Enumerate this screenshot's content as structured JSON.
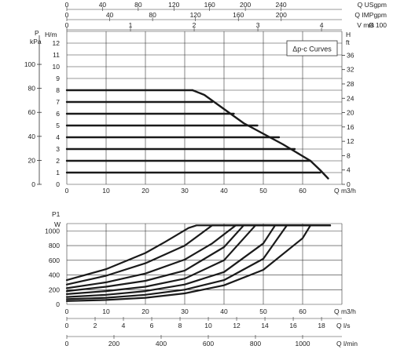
{
  "colors": {
    "curve": "#1a1a1a",
    "grid": "#333333",
    "text": "#222222"
  },
  "chart_data": [
    {
      "id": "head_curves",
      "type": "line",
      "legend_box": {
        "text": "Δp-c Curves",
        "placement": "top-right"
      },
      "grid": true,
      "x_axis": {
        "label": "Q m3/h",
        "range": [
          0,
          70
        ],
        "ticks": [
          0,
          10,
          20,
          30,
          40,
          50,
          60
        ]
      },
      "y_axis_left": {
        "label": "H/m",
        "range": [
          0,
          13
        ],
        "ticks": [
          0,
          1,
          2,
          3,
          4,
          5,
          6,
          7,
          8,
          9,
          10,
          11,
          12
        ]
      },
      "y_axis_pressure": {
        "label": "P",
        "unit": "kPa",
        "range": [
          0,
          127.5
        ],
        "ticks": [
          0,
          20,
          40,
          60,
          80,
          100
        ]
      },
      "y_axis_right": {
        "label": "H",
        "unit": "ft",
        "range": [
          0,
          42.65
        ],
        "ticks": [
          0,
          4,
          8,
          12,
          16,
          20,
          24,
          28,
          32,
          36
        ]
      },
      "top_axes": [
        {
          "label": "Q USgpm",
          "range": [
            0,
            308.2
          ],
          "ticks": [
            0,
            40,
            80,
            120,
            160,
            200,
            240
          ]
        },
        {
          "label": "Q IMPgpm",
          "range": [
            0,
            256.6
          ],
          "ticks": [
            0,
            40,
            80,
            120,
            160,
            200
          ]
        },
        {
          "label": "V m/s",
          "prefix": "Ø 100",
          "range": [
            0,
            4.32
          ],
          "ticks": [
            0,
            1,
            2,
            3,
            4
          ]
        }
      ],
      "envelope": {
        "x": [
          32,
          35,
          40,
          45,
          50,
          55,
          58,
          62,
          64.5,
          66.5
        ],
        "y": [
          8,
          7.6,
          6.4,
          5.2,
          4.3,
          3.4,
          2.8,
          2,
          1.2,
          0.5
        ]
      },
      "series": [
        {
          "values": [
            {
              "x": 0,
              "y": 1
            },
            {
              "x": 64.5,
              "y": 1
            }
          ]
        },
        {
          "values": [
            {
              "x": 0,
              "y": 2
            },
            {
              "x": 62,
              "y": 2
            }
          ]
        },
        {
          "values": [
            {
              "x": 0,
              "y": 3
            },
            {
              "x": 58,
              "y": 3
            }
          ]
        },
        {
          "values": [
            {
              "x": 0,
              "y": 4
            },
            {
              "x": 54,
              "y": 4
            }
          ]
        },
        {
          "values": [
            {
              "x": 0,
              "y": 5
            },
            {
              "x": 48.5,
              "y": 5
            }
          ]
        },
        {
          "values": [
            {
              "x": 0,
              "y": 6
            },
            {
              "x": 42.5,
              "y": 6
            }
          ]
        },
        {
          "values": [
            {
              "x": 0,
              "y": 7
            },
            {
              "x": 37,
              "y": 7
            }
          ]
        },
        {
          "values": [
            {
              "x": 0,
              "y": 8
            },
            {
              "x": 32,
              "y": 8
            }
          ]
        }
      ]
    },
    {
      "id": "power_curves",
      "type": "line",
      "grid": true,
      "title_label": "P1",
      "x_axis": {
        "label": "Q m3/h",
        "range": [
          0,
          70
        ],
        "ticks": [
          0,
          10,
          20,
          30,
          40,
          50,
          60
        ]
      },
      "y_axis_left": {
        "label": "W",
        "range": [
          0,
          1100
        ],
        "ticks": [
          0,
          200,
          400,
          600,
          800,
          1000
        ]
      },
      "bottom_axes": [
        {
          "label": "Q l/s",
          "range": [
            0,
            19.44
          ],
          "ticks": [
            0,
            2,
            4,
            6,
            8,
            10,
            12,
            14,
            16,
            18
          ]
        },
        {
          "label": "Q l/min",
          "range": [
            0,
            1166.7
          ],
          "ticks": [
            0,
            200,
            400,
            600,
            800,
            1000
          ]
        }
      ],
      "series": [
        {
          "values": [
            {
              "x": 0,
              "y": 330
            },
            {
              "x": 10,
              "y": 480
            },
            {
              "x": 20,
              "y": 700
            },
            {
              "x": 25,
              "y": 850
            },
            {
              "x": 31,
              "y": 1040
            },
            {
              "x": 33,
              "y": 1075
            },
            {
              "x": 67,
              "y": 1075
            }
          ]
        },
        {
          "values": [
            {
              "x": 0,
              "y": 270
            },
            {
              "x": 10,
              "y": 390
            },
            {
              "x": 20,
              "y": 560
            },
            {
              "x": 30,
              "y": 800
            },
            {
              "x": 37,
              "y": 1075
            },
            {
              "x": 67,
              "y": 1075
            }
          ]
        },
        {
          "values": [
            {
              "x": 0,
              "y": 220
            },
            {
              "x": 10,
              "y": 300
            },
            {
              "x": 20,
              "y": 420
            },
            {
              "x": 30,
              "y": 610
            },
            {
              "x": 37,
              "y": 830
            },
            {
              "x": 43,
              "y": 1075
            },
            {
              "x": 67,
              "y": 1075
            }
          ]
        },
        {
          "values": [
            {
              "x": 0,
              "y": 180
            },
            {
              "x": 10,
              "y": 240
            },
            {
              "x": 20,
              "y": 320
            },
            {
              "x": 30,
              "y": 460
            },
            {
              "x": 40,
              "y": 780
            },
            {
              "x": 45,
              "y": 1075
            },
            {
              "x": 67,
              "y": 1075
            }
          ]
        },
        {
          "values": [
            {
              "x": 0,
              "y": 140
            },
            {
              "x": 10,
              "y": 180
            },
            {
              "x": 20,
              "y": 240
            },
            {
              "x": 30,
              "y": 350
            },
            {
              "x": 40,
              "y": 600
            },
            {
              "x": 48,
              "y": 1075
            },
            {
              "x": 67,
              "y": 1075
            }
          ]
        },
        {
          "values": [
            {
              "x": 0,
              "y": 100
            },
            {
              "x": 10,
              "y": 130
            },
            {
              "x": 20,
              "y": 180
            },
            {
              "x": 30,
              "y": 270
            },
            {
              "x": 40,
              "y": 440
            },
            {
              "x": 50,
              "y": 830
            },
            {
              "x": 53,
              "y": 1075
            },
            {
              "x": 67,
              "y": 1075
            }
          ]
        },
        {
          "values": [
            {
              "x": 0,
              "y": 70
            },
            {
              "x": 10,
              "y": 90
            },
            {
              "x": 20,
              "y": 130
            },
            {
              "x": 30,
              "y": 200
            },
            {
              "x": 40,
              "y": 330
            },
            {
              "x": 50,
              "y": 620
            },
            {
              "x": 56,
              "y": 1075
            },
            {
              "x": 67,
              "y": 1075
            }
          ]
        },
        {
          "values": [
            {
              "x": 0,
              "y": 45
            },
            {
              "x": 10,
              "y": 60
            },
            {
              "x": 20,
              "y": 90
            },
            {
              "x": 30,
              "y": 150
            },
            {
              "x": 40,
              "y": 260
            },
            {
              "x": 50,
              "y": 470
            },
            {
              "x": 60,
              "y": 900
            },
            {
              "x": 62,
              "y": 1075
            },
            {
              "x": 67,
              "y": 1075
            }
          ]
        }
      ]
    }
  ]
}
